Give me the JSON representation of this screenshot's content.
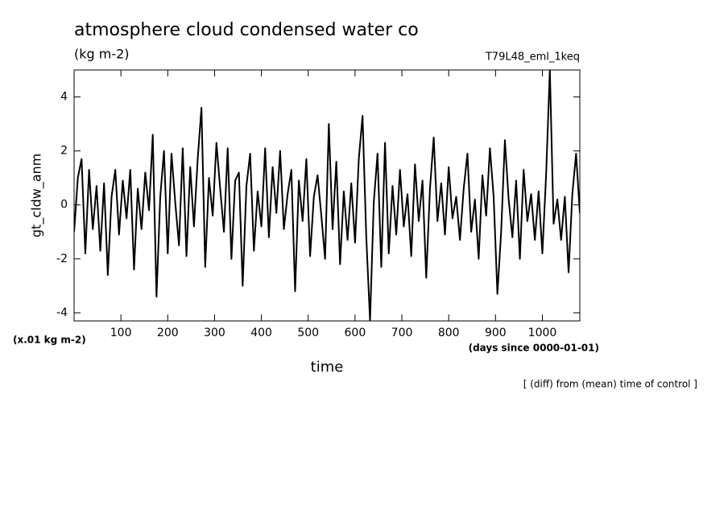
{
  "chart_data": {
    "type": "line",
    "title": "atmosphere cloud condensed water co",
    "subtitle": "(kg m-2)",
    "run_label": "T79L48_eml_1keq",
    "y_label": "gt_cldw_anm",
    "y_unit_label": "(x.01 kg m-2)",
    "x_unit_label": "(days since 0000-01-01)",
    "x_label": "time",
    "annotation": "[ (diff) from (mean) time of control ]",
    "xlim": [
      0,
      1080
    ],
    "ylim": [
      -4.3,
      5
    ],
    "xticks": [
      100,
      200,
      300,
      400,
      500,
      600,
      700,
      800,
      900,
      1000
    ],
    "yticks": [
      -4,
      -2,
      0,
      2,
      4
    ],
    "color": "#000000",
    "x": [
      0,
      8,
      16,
      24,
      32,
      40,
      48,
      56,
      64,
      72,
      80,
      88,
      96,
      104,
      112,
      120,
      128,
      136,
      144,
      152,
      160,
      168,
      176,
      184,
      192,
      200,
      208,
      216,
      224,
      232,
      240,
      248,
      256,
      264,
      272,
      280,
      288,
      296,
      304,
      312,
      320,
      328,
      336,
      344,
      352,
      360,
      368,
      376,
      384,
      392,
      400,
      408,
      416,
      424,
      432,
      440,
      448,
      456,
      464,
      472,
      480,
      488,
      496,
      504,
      512,
      520,
      528,
      536,
      544,
      552,
      560,
      568,
      576,
      584,
      592,
      600,
      608,
      616,
      624,
      632,
      640,
      648,
      656,
      664,
      672,
      680,
      688,
      696,
      704,
      712,
      720,
      728,
      736,
      744,
      752,
      760,
      768,
      776,
      784,
      792,
      800,
      808,
      816,
      824,
      832,
      840,
      848,
      856,
      864,
      872,
      880,
      888,
      896,
      904,
      912,
      920,
      928,
      936,
      944,
      952,
      960,
      968,
      976,
      984,
      992,
      1000,
      1008,
      1016,
      1024,
      1032,
      1040,
      1048,
      1056,
      1064,
      1072,
      1080
    ],
    "values": [
      -1.0,
      1.0,
      1.7,
      -1.8,
      1.3,
      -0.9,
      0.7,
      -1.7,
      0.8,
      -2.6,
      0.3,
      1.3,
      -1.1,
      0.9,
      -0.5,
      1.3,
      -2.4,
      0.6,
      -0.9,
      1.2,
      -0.2,
      2.6,
      -3.4,
      0.3,
      2.0,
      -1.8,
      1.9,
      0.1,
      -1.5,
      2.1,
      -1.9,
      1.4,
      -0.8,
      1.7,
      3.6,
      -2.3,
      1.0,
      -0.4,
      2.3,
      0.6,
      -1.0,
      2.1,
      -2.0,
      0.9,
      1.2,
      -3.0,
      0.7,
      1.9,
      -1.7,
      0.5,
      -0.8,
      2.1,
      -1.2,
      1.4,
      -0.3,
      2.0,
      -0.9,
      0.4,
      1.3,
      -3.2,
      0.9,
      -0.6,
      1.7,
      -1.9,
      0.3,
      1.1,
      -0.4,
      -2.0,
      3.0,
      -0.9,
      1.6,
      -2.2,
      0.5,
      -1.3,
      0.8,
      -1.4,
      1.7,
      3.3,
      -1.2,
      -4.3,
      0.1,
      1.9,
      -2.3,
      2.3,
      -1.8,
      0.7,
      -1.1,
      1.3,
      -0.8,
      0.4,
      -1.9,
      1.5,
      -0.6,
      0.9,
      -2.7,
      0.6,
      2.5,
      -0.6,
      0.8,
      -1.1,
      1.4,
      -0.5,
      0.3,
      -1.3,
      0.6,
      1.9,
      -1.0,
      0.2,
      -2.0,
      1.1,
      -0.4,
      2.1,
      0.3,
      -3.3,
      -1.0,
      2.4,
      0.2,
      -1.2,
      0.9,
      -2.0,
      1.3,
      -0.6,
      0.4,
      -1.3,
      0.5,
      -1.8,
      1.1,
      5.0,
      -0.7,
      0.2,
      -1.3,
      0.3,
      -2.5,
      0.4,
      1.9,
      -0.3
    ]
  }
}
